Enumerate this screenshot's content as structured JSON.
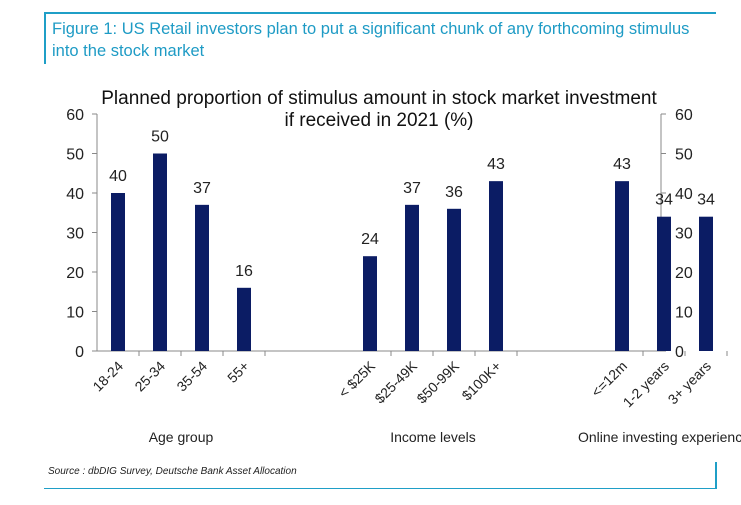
{
  "figure": {
    "caption": "Figure 1: US Retail investors plan to put a significant chunk of any forthcoming stimulus into the stock market",
    "source": "Source : dbDIG Survey, Deutsche Bank Asset Allocation",
    "accent_color": "#1f9fc7"
  },
  "chart_data": {
    "type": "bar",
    "title": "Planned proportion of stimulus amount in stock market investment if received in 2021 (%)",
    "title_lines": [
      "Planned proportion of stimulus amount in stock market investment",
      "if received in 2021 (%)"
    ],
    "ylim": [
      0,
      60
    ],
    "yticks": [
      0,
      10,
      20,
      30,
      40,
      50,
      60
    ],
    "secondary_axis": true,
    "grid": false,
    "bar_color": "#0b1c64",
    "groups": [
      {
        "label": "Age group",
        "categories": [
          "18-24",
          "25-34",
          "35-54",
          "55+"
        ],
        "values": [
          40,
          50,
          37,
          16
        ]
      },
      {
        "label": "Income levels",
        "categories": [
          "< $25K",
          "$25-49K",
          "$50-99K",
          "$100K+"
        ],
        "values": [
          24,
          37,
          36,
          43
        ]
      },
      {
        "label": "Online investing experience",
        "categories": [
          "<=12m",
          "1-2 years",
          "3+ years"
        ],
        "values": [
          43,
          34,
          34
        ]
      }
    ]
  }
}
